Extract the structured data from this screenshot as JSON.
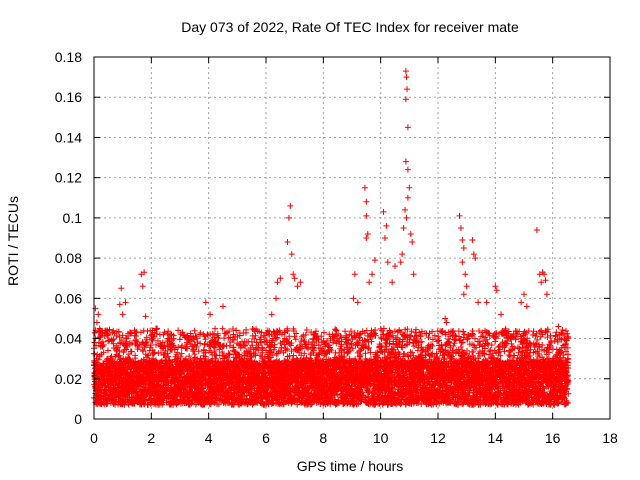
{
  "chart_data": {
    "type": "scatter",
    "title": "Day 073 of 2022, Rate Of TEC Index for receiver mate",
    "xlabel": "GPS time / hours",
    "ylabel": "ROTI / TECUs",
    "xlim": [
      0,
      18
    ],
    "ylim": [
      0,
      0.18
    ],
    "xticks": [
      0,
      2,
      4,
      6,
      8,
      10,
      12,
      14,
      16,
      18
    ],
    "xtick_labels": [
      "0",
      "2",
      "4",
      "6",
      "8",
      "10",
      "12",
      "14",
      "16",
      "18"
    ],
    "yticks": [
      0,
      0.02,
      0.04,
      0.06,
      0.08,
      0.1,
      0.12,
      0.14,
      0.16,
      0.18
    ],
    "ytick_labels": [
      "0",
      "0.02",
      "0.04",
      "0.06",
      "0.08",
      "0.1",
      "0.12",
      "0.14",
      "0.16",
      "0.18"
    ],
    "grid": true,
    "marker": "+",
    "series": [
      {
        "name": "ROTI",
        "color": "#ff0000",
        "x_range": [
          0,
          16.55
        ],
        "baseline_value": 0.018,
        "points": [
          [
            0.05,
            0.055
          ],
          [
            0.1,
            0.048
          ],
          [
            0.15,
            0.052
          ],
          [
            0.2,
            0.045
          ],
          [
            0.05,
            0.04
          ],
          [
            0.9,
            0.057
          ],
          [
            0.95,
            0.065
          ],
          [
            1.0,
            0.052
          ],
          [
            1.1,
            0.058
          ],
          [
            1.65,
            0.072
          ],
          [
            1.7,
            0.066
          ],
          [
            1.75,
            0.073
          ],
          [
            1.8,
            0.051
          ],
          [
            2.2,
            0.045
          ],
          [
            2.3,
            0.042
          ],
          [
            3.9,
            0.058
          ],
          [
            4.05,
            0.052
          ],
          [
            4.5,
            0.056
          ],
          [
            6.2,
            0.052
          ],
          [
            6.35,
            0.06
          ],
          [
            6.4,
            0.068
          ],
          [
            6.5,
            0.07
          ],
          [
            6.75,
            0.088
          ],
          [
            6.8,
            0.1
          ],
          [
            6.85,
            0.106
          ],
          [
            6.9,
            0.082
          ],
          [
            6.95,
            0.072
          ],
          [
            7.0,
            0.07
          ],
          [
            7.1,
            0.066
          ],
          [
            7.2,
            0.068
          ],
          [
            9.05,
            0.06
          ],
          [
            9.1,
            0.072
          ],
          [
            9.2,
            0.058
          ],
          [
            9.45,
            0.115
          ],
          [
            9.5,
            0.108
          ],
          [
            9.5,
            0.101
          ],
          [
            9.55,
            0.092
          ],
          [
            9.5,
            0.09
          ],
          [
            9.6,
            0.068
          ],
          [
            9.7,
            0.072
          ],
          [
            9.8,
            0.079
          ],
          [
            10.1,
            0.103
          ],
          [
            10.15,
            0.09
          ],
          [
            10.2,
            0.096
          ],
          [
            10.25,
            0.078
          ],
          [
            10.4,
            0.068
          ],
          [
            10.5,
            0.076
          ],
          [
            10.7,
            0.078
          ],
          [
            10.75,
            0.082
          ],
          [
            10.8,
            0.095
          ],
          [
            10.85,
            0.104
          ],
          [
            10.9,
            0.1
          ],
          [
            10.88,
            0.173
          ],
          [
            10.9,
            0.17
          ],
          [
            10.88,
            0.159
          ],
          [
            10.92,
            0.164
          ],
          [
            10.95,
            0.145
          ],
          [
            10.88,
            0.128
          ],
          [
            10.95,
            0.124
          ],
          [
            10.95,
            0.11
          ],
          [
            11.0,
            0.115
          ],
          [
            11.05,
            0.092
          ],
          [
            11.1,
            0.088
          ],
          [
            11.15,
            0.072
          ],
          [
            12.25,
            0.05
          ],
          [
            12.3,
            0.048
          ],
          [
            12.75,
            0.101
          ],
          [
            12.8,
            0.095
          ],
          [
            12.85,
            0.089
          ],
          [
            12.9,
            0.085
          ],
          [
            12.85,
            0.078
          ],
          [
            12.95,
            0.072
          ],
          [
            13.0,
            0.066
          ],
          [
            12.9,
            0.062
          ],
          [
            13.2,
            0.089
          ],
          [
            13.25,
            0.082
          ],
          [
            13.3,
            0.08
          ],
          [
            13.4,
            0.058
          ],
          [
            13.7,
            0.058
          ],
          [
            14.0,
            0.066
          ],
          [
            14.05,
            0.064
          ],
          [
            14.2,
            0.052
          ],
          [
            14.9,
            0.058
          ],
          [
            15.0,
            0.062
          ],
          [
            15.1,
            0.056
          ],
          [
            15.45,
            0.094
          ],
          [
            15.55,
            0.072
          ],
          [
            15.6,
            0.068
          ],
          [
            15.65,
            0.073
          ],
          [
            15.7,
            0.072
          ],
          [
            15.75,
            0.069
          ],
          [
            15.8,
            0.062
          ],
          [
            16.2,
            0.046
          ]
        ]
      }
    ]
  }
}
